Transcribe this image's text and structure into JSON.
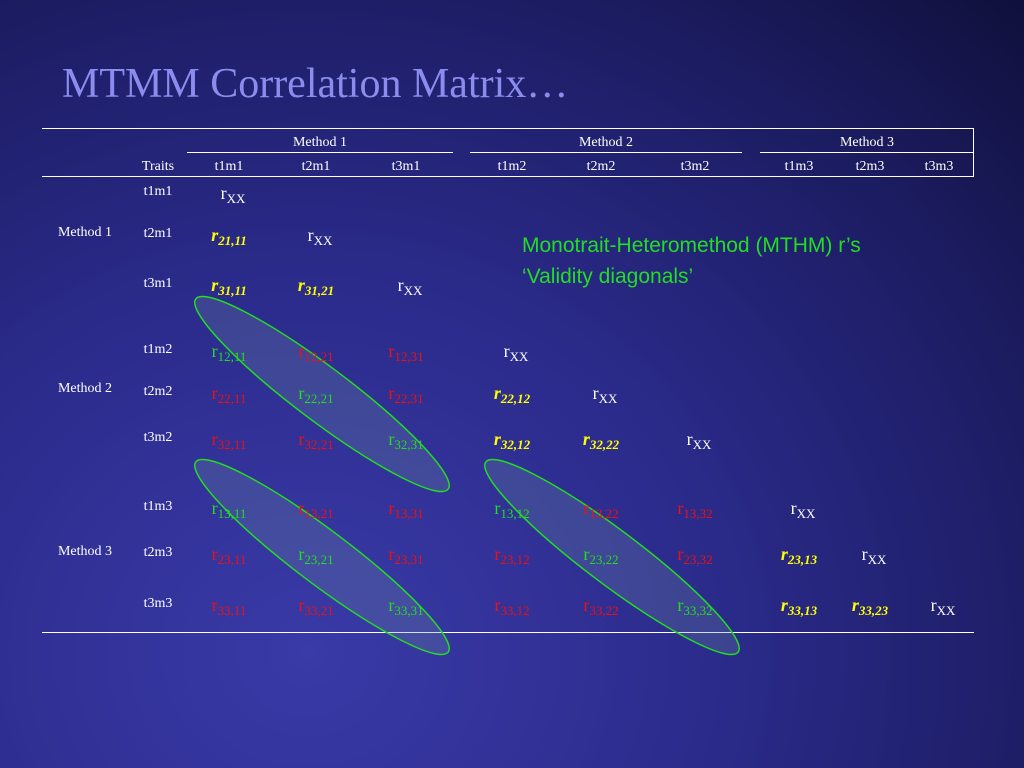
{
  "slide": {
    "title": "MTMM Correlation Matrix…",
    "annotation_line1": "Monotrait-Heteromethod (MTHM) r’s",
    "annotation_line2": "‘Validity diagonals’"
  },
  "header": {
    "methods": [
      "Method 1",
      "Method 2",
      "Method 3"
    ],
    "traits_label": "Traits",
    "columns": [
      "t1m1",
      "t2m1",
      "t3m1",
      "t1m2",
      "t2m2",
      "t3m2",
      "t1m3",
      "t2m3",
      "t3m3"
    ]
  },
  "row_groups": [
    "Method 1",
    "Method 2",
    "Method 3"
  ],
  "rows": [
    "t1m1",
    "t2m1",
    "t3m1",
    "t1m2",
    "t2m2",
    "t3m2",
    "t1m3",
    "t2m3",
    "t3m3"
  ],
  "colors": {
    "reliability": "#ffffff",
    "heterotrait_monomethod": "#ffff00",
    "validity": "#22dd22",
    "heterotrait_heteromethod": "#ee1111"
  },
  "matrix": [
    [
      {
        "base": "r",
        "sub": "XX",
        "kind": "xx"
      }
    ],
    [
      {
        "base": "r",
        "sub": "21,11",
        "kind": "y"
      },
      {
        "base": "r",
        "sub": "XX",
        "kind": "xx"
      }
    ],
    [
      {
        "base": "r",
        "sub": "31,11",
        "kind": "y"
      },
      {
        "base": "r",
        "sub": "31,21",
        "kind": "y"
      },
      {
        "base": "r",
        "sub": "XX",
        "kind": "xx"
      }
    ],
    [
      {
        "base": "r",
        "sub": "12,11",
        "kind": "g"
      },
      {
        "base": "r",
        "sub": "12,21",
        "kind": "r"
      },
      {
        "base": "r",
        "sub": "12,31",
        "kind": "r"
      },
      {
        "base": "r",
        "sub": "XX",
        "kind": "xx"
      }
    ],
    [
      {
        "base": "r",
        "sub": "22,11",
        "kind": "r"
      },
      {
        "base": "r",
        "sub": "22,21",
        "kind": "g"
      },
      {
        "base": "r",
        "sub": "22,31",
        "kind": "r"
      },
      {
        "base": "r",
        "sub": "22,12",
        "kind": "y"
      },
      {
        "base": "r",
        "sub": "XX",
        "kind": "xx"
      }
    ],
    [
      {
        "base": "r",
        "sub": "32,11",
        "kind": "r"
      },
      {
        "base": "r",
        "sub": "32,21",
        "kind": "r"
      },
      {
        "base": "r",
        "sub": "32,31",
        "kind": "g"
      },
      {
        "base": "r",
        "sub": "32,12",
        "kind": "y"
      },
      {
        "base": "r",
        "sub": "32,22",
        "kind": "y"
      },
      {
        "base": "r",
        "sub": "XX",
        "kind": "xx"
      }
    ],
    [
      {
        "base": "r",
        "sub": "13,11",
        "kind": "g"
      },
      {
        "base": "r",
        "sub": "13,21",
        "kind": "r"
      },
      {
        "base": "r",
        "sub": "13,31",
        "kind": "r"
      },
      {
        "base": "r",
        "sub": "13,12",
        "kind": "g"
      },
      {
        "base": "r",
        "sub": "13,22",
        "kind": "r"
      },
      {
        "base": "r",
        "sub": "13,32",
        "kind": "r"
      },
      {
        "base": "r",
        "sub": "XX",
        "kind": "xx"
      }
    ],
    [
      {
        "base": "r",
        "sub": "23,11",
        "kind": "r"
      },
      {
        "base": "r",
        "sub": "23,21",
        "kind": "g"
      },
      {
        "base": "r",
        "sub": "23,31",
        "kind": "r"
      },
      {
        "base": "r",
        "sub": "23,12",
        "kind": "r"
      },
      {
        "base": "r",
        "sub": "23,22",
        "kind": "g"
      },
      {
        "base": "r",
        "sub": "23,32",
        "kind": "r"
      },
      {
        "base": "r",
        "sub": "23,13",
        "kind": "y"
      },
      {
        "base": "r",
        "sub": "XX",
        "kind": "xx"
      }
    ],
    [
      {
        "base": "r",
        "sub": "33,11",
        "kind": "r"
      },
      {
        "base": "r",
        "sub": "33,21",
        "kind": "r"
      },
      {
        "base": "r",
        "sub": "33,31",
        "kind": "g"
      },
      {
        "base": "r",
        "sub": "33,12",
        "kind": "r"
      },
      {
        "base": "r",
        "sub": "33,22",
        "kind": "r"
      },
      {
        "base": "r",
        "sub": "33,32",
        "kind": "g"
      },
      {
        "base": "r",
        "sub": "33,13",
        "kind": "y"
      },
      {
        "base": "r",
        "sub": "33,23",
        "kind": "y"
      },
      {
        "base": "r",
        "sub": "XX",
        "kind": "xx"
      }
    ]
  ]
}
